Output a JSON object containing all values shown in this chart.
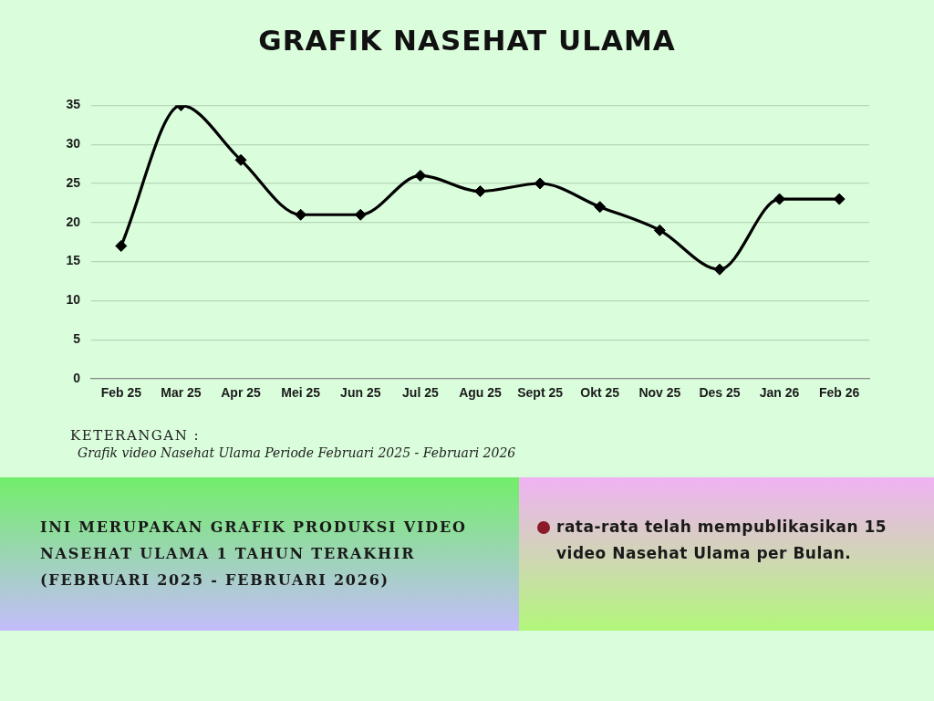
{
  "chart_data": {
    "type": "line",
    "title": "GRAFIK NASEHAT ULAMA",
    "categories": [
      "Feb 25",
      "Mar 25",
      "Apr 25",
      "Mei 25",
      "Jun 25",
      "Jul 25",
      "Agu 25",
      "Sept 25",
      "Okt 25",
      "Nov 25",
      "Des 25",
      "Jan 26",
      "Feb 26"
    ],
    "values": [
      17,
      35,
      28,
      21,
      21,
      26,
      24,
      25,
      22,
      19,
      14,
      23,
      23
    ],
    "color": "#000000",
    "ylim": [
      0,
      35
    ],
    "yticks": [
      0,
      5,
      10,
      15,
      20,
      25,
      30,
      35
    ],
    "grid": "y",
    "legend": false,
    "marker": "diamond",
    "line_style": "solid",
    "annotations": [
      "KETERANGAN :",
      "Grafik video Nasehat Ulama Periode Februari 2025 - Februari 2026",
      "INI MERUPAKAN GRAFIK PRODUKSI VIDEO NASEHAT ULAMA 1 TAHUN TERAKHIR (FEBRUARI 2025 - FEBRUARI 2026)",
      "rata-rata telah mempublikasikan 15 video Nasehat Ulama per Bulan."
    ]
  }
}
